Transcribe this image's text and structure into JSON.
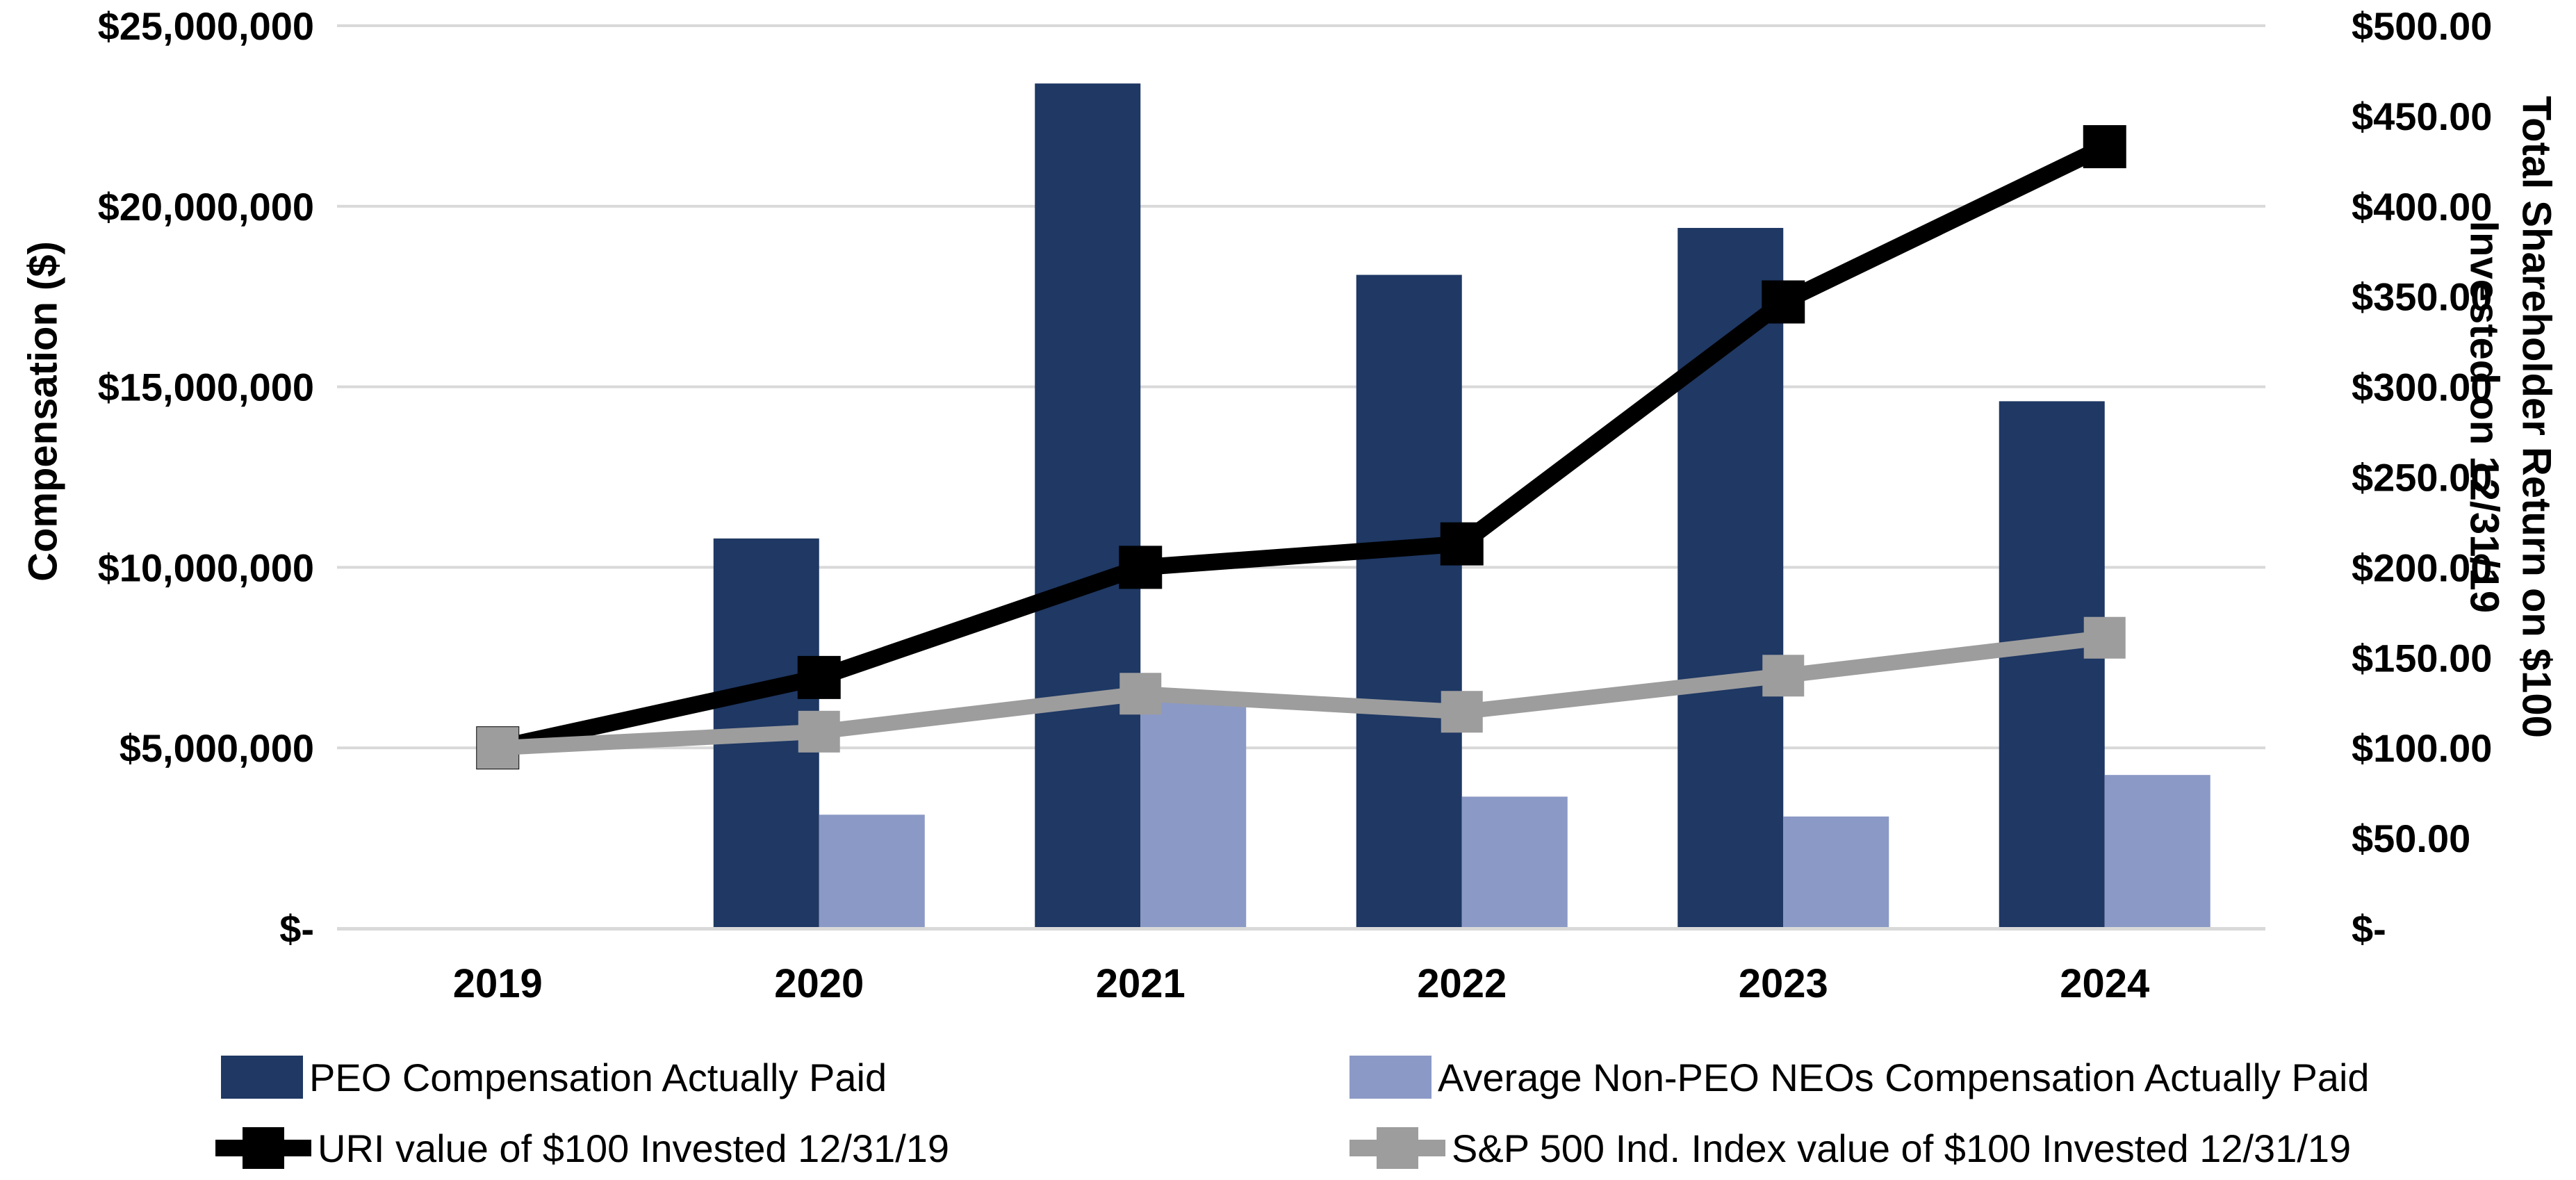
{
  "page": {
    "background": "#FFFFFF"
  },
  "chart_data": {
    "type": "combo-bar-line",
    "categories": [
      "2019",
      "2020",
      "2021",
      "2022",
      "2023",
      "2024"
    ],
    "series": [
      {
        "name": "PEO Compensation Actually Paid",
        "type": "bar",
        "axis": "left",
        "color": "#1F3864",
        "values": [
          null,
          10800000,
          23400000,
          18100000,
          19400000,
          14600000
        ]
      },
      {
        "name": "Average Non-PEO NEOs Compensation Actually Paid",
        "type": "bar",
        "axis": "left",
        "color": "#8B99C6",
        "values": [
          null,
          3150000,
          6500000,
          3650000,
          3100000,
          4250000
        ]
      },
      {
        "name": "URI value of $100 Invested 12/31/19",
        "type": "line",
        "axis": "right",
        "color": "#000000",
        "marker": "square",
        "values": [
          100,
          139,
          200,
          213,
          347,
          433
        ]
      },
      {
        "name": "S&P 500 Ind. Index value of $100 Invested 12/31/19",
        "type": "line",
        "axis": "right",
        "color": "#9D9D9D",
        "marker": "square",
        "values": [
          100,
          109,
          130,
          120,
          140,
          161
        ]
      }
    ],
    "left_axis": {
      "title": "Compensation ($)",
      "min": 0,
      "max": 25000000,
      "tick_step": 5000000,
      "tick_labels": [
        "$-",
        "$5,000,000",
        "$10,000,000",
        "$15,000,000",
        "$20,000,000",
        "$25,000,000"
      ]
    },
    "right_axis": {
      "title_line1": "Total Shareholder Return on $100",
      "title_line2": "Invested on 12/31/19",
      "min": 0,
      "max": 500,
      "tick_step": 50,
      "tick_labels": [
        "$-",
        "$50.00",
        "$100.00",
        "$150.00",
        "$200.00",
        "$250.00",
        "$300.00",
        "$350.00",
        "$400.00",
        "$450.00",
        "$500.00"
      ]
    },
    "grid": {
      "horizontal": true,
      "color": "#D9D9D9"
    },
    "axis_line_color": "#D9D9D9",
    "legend_position": "bottom-two-columns"
  }
}
